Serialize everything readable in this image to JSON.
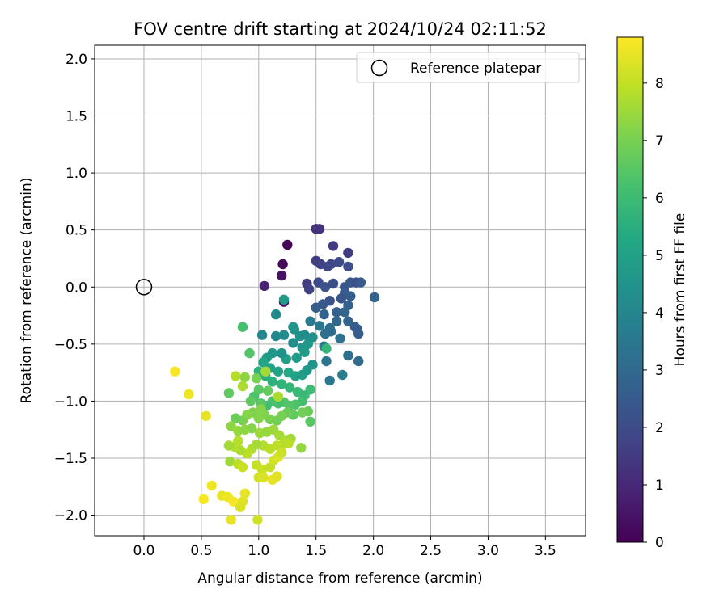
{
  "chart_data": {
    "type": "scatter",
    "title": "FOV centre drift starting at 2024/10/24 02:11:52",
    "xlabel": "Angular distance from reference (arcmin)",
    "ylabel": "Rotation from reference (arcmin)",
    "xlim": [
      -0.43,
      3.85
    ],
    "ylim": [
      -2.18,
      2.12
    ],
    "xticks": [
      0.0,
      0.5,
      1.0,
      1.5,
      2.0,
      2.5,
      3.0,
      3.5
    ],
    "yticks": [
      -2.0,
      -1.5,
      -1.0,
      -0.5,
      0.0,
      0.5,
      1.0,
      1.5,
      2.0
    ],
    "xtick_labels": [
      "0.0",
      "0.5",
      "1.0",
      "1.5",
      "2.0",
      "2.5",
      "3.0",
      "3.5"
    ],
    "ytick_labels": [
      "−2.0",
      "−1.5",
      "−1.0",
      "−0.5",
      "0.0",
      "0.5",
      "1.0",
      "1.5",
      "2.0"
    ],
    "grid": true,
    "legend_position": "top-right",
    "colormap": "viridis",
    "colorbar": {
      "label": "Hours from first FF file",
      "range": [
        0,
        8.8
      ],
      "ticks": [
        0,
        1,
        2,
        3,
        4,
        5,
        6,
        7,
        8
      ],
      "tick_labels": [
        "0",
        "1",
        "2",
        "3",
        "4",
        "5",
        "6",
        "7",
        "8"
      ]
    },
    "reference": {
      "name": "Reference platepar",
      "x": 0.0,
      "y": 0.0
    },
    "points": [
      [
        1.25,
        0.37,
        0.1
      ],
      [
        1.21,
        0.2,
        0.2
      ],
      [
        1.2,
        0.1,
        0.4
      ],
      [
        1.22,
        -0.13,
        0.3
      ],
      [
        1.05,
        0.01,
        0.8
      ],
      [
        1.5,
        0.51,
        1.3
      ],
      [
        1.53,
        0.51,
        1.2
      ],
      [
        1.65,
        0.36,
        1.5
      ],
      [
        1.5,
        0.23,
        1.6
      ],
      [
        1.54,
        0.2,
        1.7
      ],
      [
        1.6,
        0.18,
        1.8
      ],
      [
        1.63,
        0.2,
        1.9
      ],
      [
        1.7,
        0.22,
        2.0
      ],
      [
        1.78,
        0.3,
        1.6
      ],
      [
        1.78,
        0.18,
        2.1
      ],
      [
        1.42,
        0.03,
        1.5
      ],
      [
        1.44,
        -0.02,
        1.7
      ],
      [
        1.52,
        0.04,
        2.0
      ],
      [
        1.58,
        0.0,
        2.2
      ],
      [
        1.65,
        0.03,
        2.1
      ],
      [
        1.75,
        0.0,
        2.3
      ],
      [
        1.8,
        0.04,
        2.4
      ],
      [
        1.85,
        0.04,
        2.2
      ],
      [
        1.89,
        0.04,
        2.5
      ],
      [
        1.75,
        -0.05,
        2.5
      ],
      [
        1.8,
        -0.08,
        2.6
      ],
      [
        1.72,
        -0.1,
        2.3
      ],
      [
        1.62,
        -0.12,
        2.2
      ],
      [
        1.56,
        -0.15,
        2.4
      ],
      [
        1.5,
        -0.18,
        2.6
      ],
      [
        1.57,
        -0.24,
        2.8
      ],
      [
        1.68,
        -0.22,
        2.7
      ],
      [
        1.78,
        -0.16,
        2.7
      ],
      [
        1.75,
        -0.22,
        2.9
      ],
      [
        1.68,
        -0.3,
        3.0
      ],
      [
        1.62,
        -0.36,
        3.1
      ],
      [
        1.78,
        -0.3,
        2.8
      ],
      [
        1.84,
        -0.35,
        2.6
      ],
      [
        1.86,
        -0.37,
        2.5
      ],
      [
        1.87,
        -0.41,
        2.6
      ],
      [
        2.01,
        -0.09,
        2.8
      ],
      [
        1.71,
        -0.45,
        3.3
      ],
      [
        1.58,
        -0.41,
        3.2
      ],
      [
        1.63,
        -0.39,
        3.1
      ],
      [
        1.53,
        -0.34,
        3.5
      ],
      [
        1.45,
        -0.3,
        3.6
      ],
      [
        1.57,
        -0.52,
        3.6
      ],
      [
        1.78,
        -0.6,
        3.2
      ],
      [
        1.87,
        -0.65,
        3.0
      ],
      [
        1.59,
        -0.65,
        3.4
      ],
      [
        1.73,
        -0.77,
        3.7
      ],
      [
        1.62,
        -0.82,
        3.5
      ],
      [
        1.03,
        -0.42,
        4.0
      ],
      [
        1.15,
        -0.43,
        4.1
      ],
      [
        1.22,
        -0.42,
        4.2
      ],
      [
        1.31,
        -0.37,
        4.3
      ],
      [
        1.36,
        -0.43,
        4.4
      ],
      [
        1.3,
        -0.49,
        4.3
      ],
      [
        1.38,
        -0.53,
        4.6
      ],
      [
        1.43,
        -0.5,
        4.6
      ],
      [
        1.47,
        -0.44,
        4.4
      ],
      [
        1.4,
        -0.57,
        4.8
      ],
      [
        1.33,
        -0.62,
        4.8
      ],
      [
        1.24,
        -0.63,
        4.9
      ],
      [
        1.2,
        -0.58,
        4.4
      ],
      [
        1.12,
        -0.58,
        4.6
      ],
      [
        1.07,
        -0.62,
        4.8
      ],
      [
        1.04,
        -0.66,
        5.2
      ],
      [
        1.1,
        -0.71,
        5.0
      ],
      [
        1.17,
        -0.74,
        5.1
      ],
      [
        1.26,
        -0.75,
        5.3
      ],
      [
        1.32,
        -0.78,
        5.0
      ],
      [
        1.38,
        -0.77,
        4.9
      ],
      [
        1.42,
        -0.73,
        4.7
      ],
      [
        1.47,
        -0.68,
        4.5
      ],
      [
        1.59,
        -0.54,
        5.8
      ],
      [
        1.15,
        -0.24,
        4.2
      ],
      [
        1.22,
        -0.11,
        4.8
      ],
      [
        1.3,
        -0.35,
        4.5
      ],
      [
        1.4,
        -0.42,
        4.3
      ],
      [
        1.06,
        -0.78,
        5.5
      ],
      [
        1.0,
        -0.74,
        5.6
      ],
      [
        1.12,
        -0.83,
        5.6
      ],
      [
        1.2,
        -0.85,
        5.7
      ],
      [
        1.27,
        -0.88,
        5.8
      ],
      [
        1.34,
        -0.92,
        5.9
      ],
      [
        1.4,
        -0.95,
        5.9
      ],
      [
        1.45,
        -0.9,
        6.0
      ],
      [
        1.38,
        -1.0,
        6.1
      ],
      [
        1.32,
        -1.03,
        6.3
      ],
      [
        1.27,
        -1.04,
        6.4
      ],
      [
        1.22,
        -1.01,
        6.4
      ],
      [
        1.17,
        -1.02,
        6.2
      ],
      [
        1.12,
        -1.0,
        6.3
      ],
      [
        1.07,
        -1.04,
        6.1
      ],
      [
        1.02,
        -1.02,
        6.5
      ],
      [
        0.96,
        -0.96,
        6.3
      ],
      [
        0.93,
        -1.0,
        6.6
      ],
      [
        1.0,
        -0.9,
        6.5
      ],
      [
        1.08,
        -0.91,
        6.7
      ],
      [
        0.86,
        -0.35,
        6.2
      ],
      [
        0.92,
        -0.58,
        6.4
      ],
      [
        0.74,
        -0.93,
        6.6
      ],
      [
        1.43,
        -1.09,
        6.8
      ],
      [
        1.45,
        -1.18,
        6.5
      ],
      [
        1.38,
        -1.1,
        6.9
      ],
      [
        1.3,
        -1.12,
        6.6
      ],
      [
        1.25,
        -1.1,
        6.8
      ],
      [
        1.2,
        -1.13,
        7.0
      ],
      [
        1.16,
        -1.17,
        6.9
      ],
      [
        1.1,
        -1.16,
        7.0
      ],
      [
        1.05,
        -1.12,
        7.1
      ],
      [
        1.0,
        -1.15,
        7.2
      ],
      [
        0.95,
        -1.1,
        7.1
      ],
      [
        0.9,
        -1.12,
        7.2
      ],
      [
        0.86,
        -1.17,
        7.0
      ],
      [
        0.8,
        -1.15,
        6.8
      ],
      [
        0.76,
        -1.22,
        7.3
      ],
      [
        0.82,
        -1.26,
        7.4
      ],
      [
        0.88,
        -1.25,
        7.3
      ],
      [
        0.94,
        -1.24,
        7.2
      ],
      [
        1.01,
        -1.28,
        7.5
      ],
      [
        1.07,
        -1.27,
        7.4
      ],
      [
        1.13,
        -1.25,
        7.5
      ],
      [
        1.18,
        -1.3,
        7.6
      ],
      [
        1.24,
        -1.34,
        7.7
      ],
      [
        1.28,
        -1.33,
        7.6
      ],
      [
        1.22,
        -1.37,
        7.8
      ],
      [
        1.16,
        -1.39,
        7.9
      ],
      [
        1.1,
        -1.42,
        7.9
      ],
      [
        1.04,
        -1.39,
        7.8
      ],
      [
        0.98,
        -1.38,
        7.6
      ],
      [
        0.94,
        -1.42,
        7.7
      ],
      [
        0.9,
        -1.46,
        7.9
      ],
      [
        0.84,
        -1.43,
        7.7
      ],
      [
        0.79,
        -1.4,
        7.8
      ],
      [
        0.74,
        -1.39,
        7.6
      ],
      [
        0.75,
        -1.53,
        7.5
      ],
      [
        0.82,
        -1.55,
        7.9
      ],
      [
        0.86,
        -1.58,
        8.1
      ],
      [
        0.98,
        -1.56,
        8.0
      ],
      [
        1.03,
        -1.6,
        8.1
      ],
      [
        1.0,
        -1.67,
        8.2
      ],
      [
        1.04,
        -1.67,
        8.3
      ],
      [
        1.1,
        -1.58,
        8.0
      ],
      [
        1.13,
        -1.52,
        8.2
      ],
      [
        1.17,
        -1.49,
        8.3
      ],
      [
        1.2,
        -1.45,
        8.1
      ],
      [
        1.26,
        -1.37,
        7.9
      ],
      [
        1.37,
        -1.41,
        7.4
      ],
      [
        0.86,
        -0.87,
        7.7
      ],
      [
        0.8,
        -0.78,
        7.8
      ],
      [
        1.06,
        -0.74,
        7.6
      ],
      [
        1.02,
        -1.07,
        7.2
      ],
      [
        1.17,
        -0.96,
        7.7
      ],
      [
        0.82,
        -1.35,
        7.8
      ],
      [
        0.88,
        -0.79,
        7.3
      ],
      [
        0.98,
        -0.8,
        7.0
      ],
      [
        1.12,
        -1.69,
        8.5
      ],
      [
        1.16,
        -1.66,
        8.4
      ],
      [
        0.27,
        -0.74,
        8.7
      ],
      [
        0.39,
        -0.94,
        8.6
      ],
      [
        0.54,
        -1.13,
        8.5
      ],
      [
        0.59,
        -1.74,
        8.6
      ],
      [
        0.52,
        -1.86,
        8.7
      ],
      [
        0.68,
        -1.83,
        8.5
      ],
      [
        0.73,
        -1.84,
        8.6
      ],
      [
        0.78,
        -1.88,
        8.7
      ],
      [
        0.86,
        -1.88,
        8.4
      ],
      [
        0.84,
        -1.93,
        8.3
      ],
      [
        0.88,
        -1.81,
        8.5
      ],
      [
        0.76,
        -2.04,
        8.5
      ],
      [
        0.99,
        -2.04,
        8.2
      ]
    ]
  }
}
